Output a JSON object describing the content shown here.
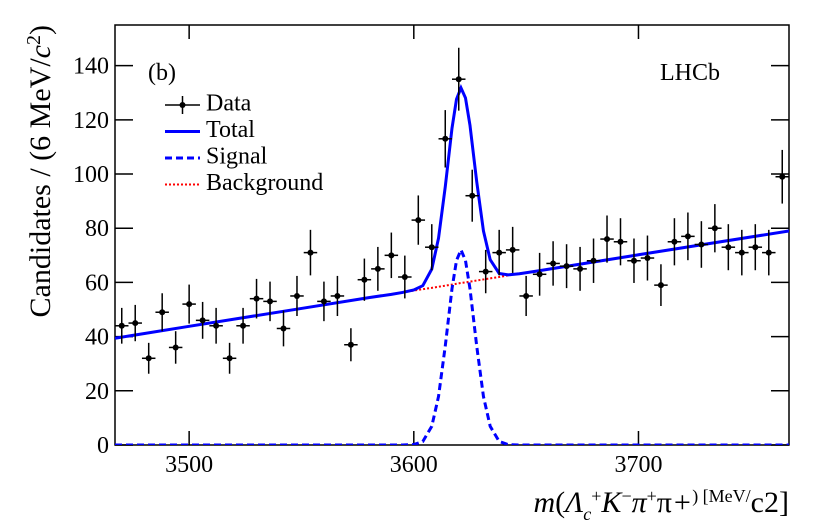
{
  "chart_data": {
    "type": "line",
    "panel_label": "(b)",
    "experiment": "LHCb",
    "x_label": [
      "m",
      "(",
      "Λ",
      "c",
      "+",
      "K",
      "−",
      "π",
      "+",
      "π",
      "+",
      ") [MeV/",
      "c",
      "2",
      "]"
    ],
    "y_label": [
      "Candidates / (6 MeV/",
      "c",
      "2",
      ")"
    ],
    "xlim": [
      3467,
      3767
    ],
    "ylim": [
      0,
      155
    ],
    "xticks": [
      3500,
      3600,
      3700
    ],
    "yticks": [
      0,
      20,
      40,
      60,
      80,
      100,
      120,
      140
    ],
    "data": {
      "name": "Data",
      "color": "#000000",
      "x": [
        3470,
        3476,
        3482,
        3488,
        3494,
        3500,
        3506,
        3512,
        3518,
        3524,
        3530,
        3536,
        3542,
        3548,
        3554,
        3560,
        3566,
        3572,
        3578,
        3584,
        3590,
        3596,
        3602,
        3608,
        3614,
        3620,
        3626,
        3632,
        3638,
        3644,
        3650,
        3656,
        3662,
        3668,
        3674,
        3680,
        3686,
        3692,
        3698,
        3704,
        3710,
        3716,
        3722,
        3728,
        3734,
        3740,
        3746,
        3752,
        3758,
        3764
      ],
      "values": [
        44,
        45,
        32,
        49,
        36,
        52,
        46,
        44,
        32,
        44,
        54,
        53,
        43,
        55,
        71,
        53,
        55,
        37,
        61,
        65,
        70,
        62,
        83,
        73,
        113,
        135,
        92,
        64,
        71,
        72,
        55,
        63,
        67,
        66,
        65,
        68,
        76,
        75,
        68,
        69,
        59,
        75,
        77,
        74,
        80,
        73,
        71,
        73,
        71,
        99
      ],
      "errors": [
        6.6,
        6.7,
        5.7,
        7,
        6,
        7.2,
        6.8,
        6.6,
        5.7,
        6.6,
        7.3,
        7.3,
        6.6,
        7.4,
        8.4,
        7.3,
        7.4,
        6.1,
        7.8,
        8.1,
        8.4,
        7.9,
        9.1,
        8.5,
        10.6,
        11.6,
        9.6,
        8,
        8.4,
        8.5,
        7.4,
        7.9,
        8.2,
        8.1,
        8.1,
        8.2,
        8.7,
        8.7,
        8.2,
        8.3,
        7.7,
        8.7,
        8.8,
        8.6,
        8.9,
        8.5,
        8.4,
        8.5,
        8.4,
        9.9
      ]
    },
    "curve_x": [
      3467,
      3500,
      3550,
      3580,
      3590,
      3595,
      3600,
      3604,
      3608,
      3611,
      3614,
      3617,
      3619,
      3621,
      3623,
      3625,
      3628,
      3631,
      3634,
      3638,
      3642,
      3647,
      3655,
      3700,
      3767
    ],
    "series": [
      {
        "name": "Total",
        "color": "#0000ff",
        "style": "solid",
        "values": [
          39.4,
          43.8,
          50.4,
          54.4,
          55.6,
          56.3,
          57.2,
          58.8,
          64.9,
          76.3,
          95.3,
          116.9,
          127.6,
          131.8,
          128.1,
          118.0,
          97.2,
          79.0,
          68.4,
          63.3,
          62.8,
          63.2,
          64.2,
          70.2,
          79.0
        ]
      },
      {
        "name": "Signal",
        "color": "#0000ff",
        "style": "dashed",
        "values": [
          0,
          0,
          0,
          0,
          0,
          0,
          0.16,
          1.3,
          6.9,
          17.9,
          36.5,
          57.7,
          68.1,
          72,
          68.1,
          57.7,
          36.5,
          17.9,
          6.9,
          1.3,
          0.16,
          0,
          0,
          0,
          0
        ]
      },
      {
        "name": "Background",
        "color": "#ff0000",
        "style": "dotted",
        "values": [
          39.4,
          43.8,
          50.4,
          54.4,
          55.6,
          56.3,
          57.0,
          57.5,
          58.0,
          58.4,
          58.8,
          59.2,
          59.5,
          59.8,
          60.0,
          60.3,
          60.7,
          61.1,
          61.5,
          62.0,
          62.6,
          63.2,
          64.2,
          70.2,
          79.0
        ]
      }
    ]
  }
}
